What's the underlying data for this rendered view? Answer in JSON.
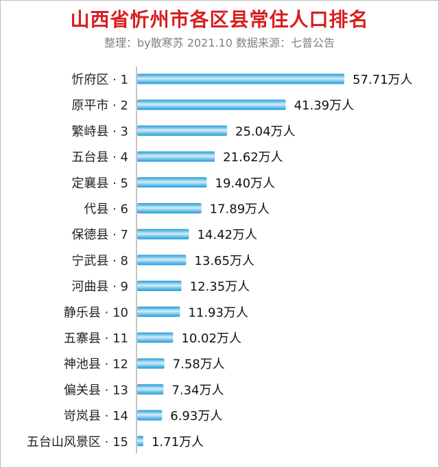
{
  "title": "山西省忻州市各区县常住人口排名",
  "subtitle": "整理：by散寒苏  2021.10  数据来源：七普公告",
  "colors": {
    "title": "#d81e1e",
    "subtitle": "#7f7f7f",
    "bar_edge": "#1e9bd7",
    "bar_mid": "#d2eefa",
    "axis": "#888888"
  },
  "chart_data": {
    "type": "bar",
    "orientation": "horizontal",
    "value_suffix": "万人",
    "categories": [
      "忻府区 · 1",
      "原平市 · 2",
      "繁峙县 · 3",
      "五台县 · 4",
      "定襄县 · 5",
      "代县 · 6",
      "保德县 · 7",
      "宁武县 · 8",
      "河曲县 · 9",
      "静乐县 · 10",
      "五寨县 · 11",
      "神池县 · 12",
      "偏关县 · 13",
      "岢岚县 · 14",
      "五台山风景区 · 15"
    ],
    "values": [
      57.71,
      41.39,
      25.04,
      21.62,
      19.4,
      17.89,
      14.42,
      13.65,
      12.35,
      11.93,
      10.02,
      7.58,
      7.34,
      6.93,
      1.71
    ],
    "value_labels": [
      "57.71万人",
      "41.39万人",
      "25.04万人",
      "21.62万人",
      "19.40万人",
      "17.89万人",
      "14.42万人",
      "13.65万人",
      "12.35万人",
      "11.93万人",
      "10.02万人",
      "7.58万人",
      "7.34万人",
      "6.93万人",
      "1.71万人"
    ],
    "xlim": [
      0,
      57.71
    ],
    "grid": false,
    "legend": "none"
  }
}
